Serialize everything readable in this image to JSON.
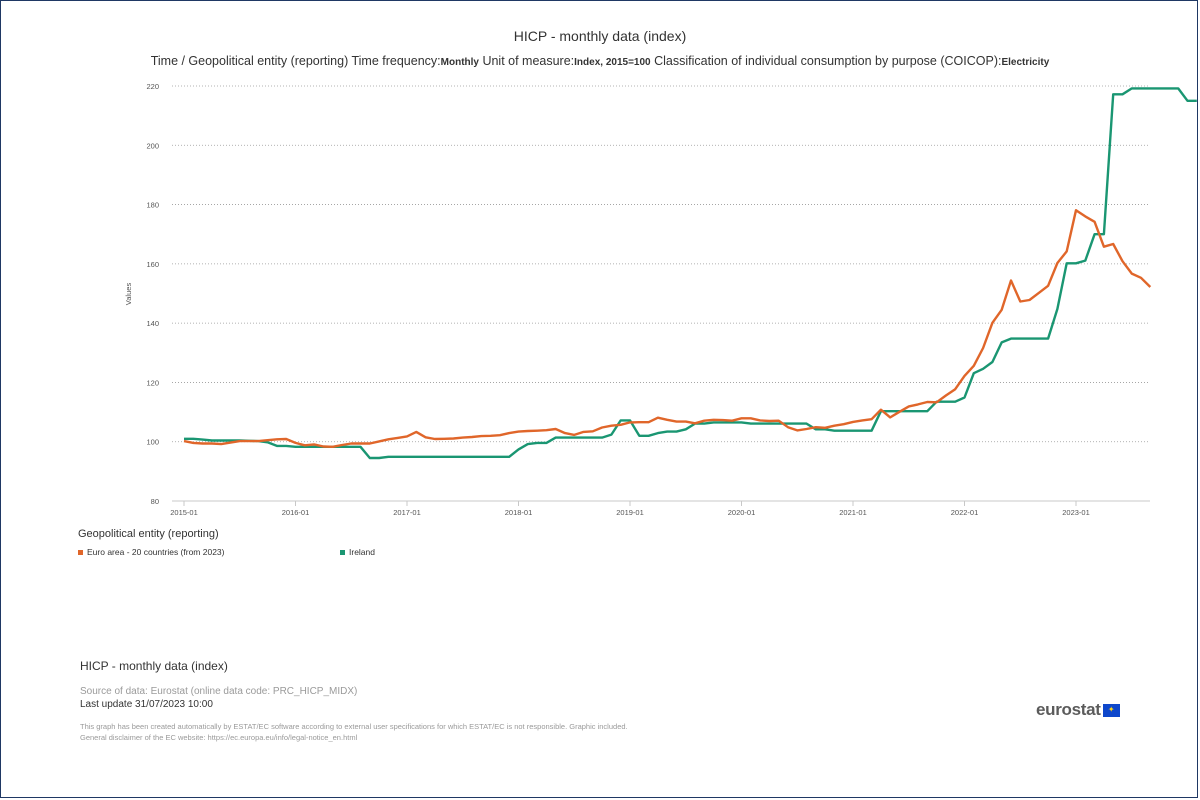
{
  "title": "HICP - monthly data (index)",
  "subtitle": {
    "part1": "Time / Geopolitical entity (reporting)  Time frequency:",
    "freq": "Monthly",
    "part2": "  Unit of measure:",
    "unit": "Index, 2015=100",
    "part3": "  Classification of individual consumption by purpose (COICOP):",
    "coicop": "Electricity"
  },
  "legend": {
    "title": "Geopolitical entity (reporting)",
    "items": [
      {
        "label": "Euro area - 20 countries (from 2023)",
        "color": "#e0662a"
      },
      {
        "label": "Ireland",
        "color": "#1a9672"
      }
    ]
  },
  "footer": {
    "title": "HICP - monthly data (index)",
    "source": "Source of data: Eurostat (online data code: PRC_HICP_MIDX)",
    "update": "Last update 31/07/2023 10:00",
    "disclaimer1": "This graph has been created automatically by ESTAT/EC software according to external user specifications for which ESTAT/EC is not responsible. Graphic included.",
    "disclaimer2": "General disclaimer of the EC website: https://ec.europa.eu/info/legal-notice_en.html"
  },
  "logo": {
    "text": "eurostat"
  },
  "chart_data": {
    "type": "line",
    "ylabel": "Values",
    "ylim": [
      80,
      220
    ],
    "yticks": [
      80,
      100,
      120,
      140,
      160,
      180,
      200,
      220
    ],
    "xticks": [
      "2015-01",
      "2016-01",
      "2017-01",
      "2018-01",
      "2019-01",
      "2020-01",
      "2021-01",
      "2022-01",
      "2023-01"
    ],
    "x_start": "2015-01",
    "grid": "horizontal dotted",
    "legend_position": "bottom-left",
    "series": [
      {
        "name": "Euro area - 20 countries (from 2023)",
        "color": "#e0662a",
        "values": [
          100.2,
          99.6,
          99.4,
          99.4,
          99.2,
          99.7,
          100.2,
          100.2,
          100.2,
          100.5,
          100.8,
          100.9,
          99.6,
          98.8,
          99.1,
          98.4,
          98.3,
          98.9,
          99.4,
          99.4,
          99.4,
          100.1,
          100.8,
          101.3,
          101.8,
          103.3,
          101.5,
          100.9,
          101.0,
          101.1,
          101.4,
          101.6,
          101.9,
          102.0,
          102.2,
          102.9,
          103.4,
          103.6,
          103.7,
          103.9,
          104.3,
          102.9,
          102.3,
          103.3,
          103.5,
          104.8,
          105.4,
          105.7,
          106.5,
          106.6,
          106.6,
          108.1,
          107.4,
          106.8,
          106.8,
          106.2,
          107.1,
          107.4,
          107.3,
          107.1,
          107.9,
          107.9,
          107.2,
          107.0,
          107.1,
          104.9,
          103.8,
          104.3,
          104.9,
          104.7,
          105.4,
          105.9,
          106.7,
          107.2,
          107.6,
          110.8,
          108.2,
          110.1,
          111.9,
          112.6,
          113.4,
          113.3,
          115.6,
          117.7,
          122.2,
          125.6,
          131.6,
          140.1,
          144.5,
          154.4,
          147.3,
          147.8,
          150.2,
          152.6,
          160.3,
          164.2,
          178.1,
          176.0,
          174.2,
          165.8,
          166.7,
          160.9,
          156.7,
          155.3,
          152.2
        ]
      },
      {
        "name": "Ireland",
        "color": "#1a9672",
        "values": [
          101.0,
          101.0,
          100.7,
          100.4,
          100.4,
          100.4,
          100.4,
          100.3,
          100.2,
          99.8,
          98.6,
          98.6,
          98.3,
          98.3,
          98.3,
          98.3,
          98.3,
          98.3,
          98.3,
          98.3,
          94.5,
          94.5,
          94.9,
          94.9,
          94.9,
          94.9,
          94.9,
          94.9,
          94.9,
          94.9,
          94.9,
          94.9,
          94.9,
          94.9,
          94.9,
          94.9,
          97.4,
          99.2,
          99.6,
          99.6,
          101.4,
          101.4,
          101.4,
          101.4,
          101.4,
          101.4,
          102.4,
          107.2,
          107.2,
          102.0,
          102.0,
          102.9,
          103.4,
          103.4,
          104.2,
          106.1,
          106.1,
          106.5,
          106.5,
          106.5,
          106.5,
          106.1,
          106.1,
          106.1,
          106.1,
          106.1,
          106.1,
          106.1,
          104.2,
          104.2,
          103.7,
          103.7,
          103.7,
          103.7,
          103.7,
          110.3,
          110.3,
          110.3,
          110.3,
          110.3,
          110.3,
          113.5,
          113.5,
          113.5,
          114.9,
          123.1,
          124.6,
          126.9,
          133.5,
          134.8,
          134.8,
          134.8,
          134.8,
          134.8,
          144.8,
          160.2,
          160.2,
          161.1,
          170.0,
          170.0,
          217.2,
          217.2,
          219.2,
          219.2,
          219.2,
          219.2,
          219.2,
          219.2,
          215.0,
          215.0
        ]
      }
    ]
  }
}
